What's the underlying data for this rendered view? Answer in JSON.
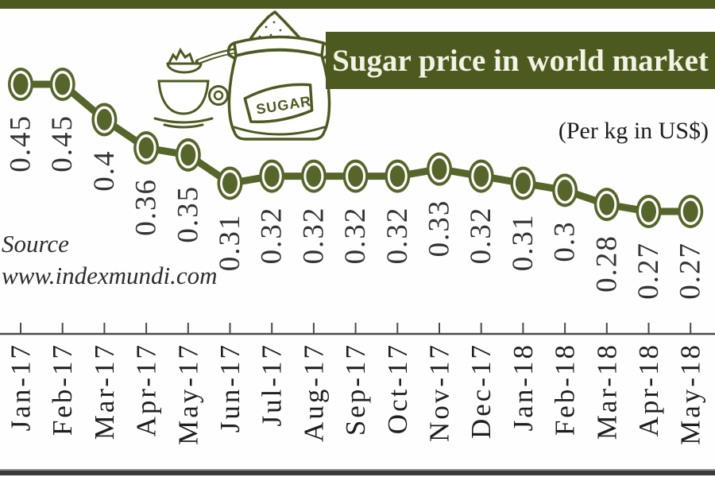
{
  "header": {
    "title": "Sugar price in world market",
    "unit_note": "(Per kg in US$)"
  },
  "source": {
    "label": "Source",
    "url": "www.indexmundi.com"
  },
  "illustration": {
    "sack_label": "SUGAR",
    "icons": [
      "sugar-sack-icon",
      "spoon-icon",
      "teacup-icon"
    ]
  },
  "colors": {
    "olive_dark": "#4c5a20",
    "olive": "#56652a",
    "banner_text": "#f2f3e2",
    "label_ink": "#333333",
    "month_ink": "#1f1f1f",
    "axis_ink": "#4a4a4a",
    "rule_ink": "#3a3a3a"
  },
  "chart_data": {
    "type": "line",
    "title": "Sugar price in world market",
    "subtitle": "(Per kg in US$)",
    "series_name": "Sugar price (US$ per kg)",
    "categories": [
      "Jan-17",
      "Feb-17",
      "Mar-17",
      "Apr-17",
      "May-17",
      "Jun-17",
      "Jul-17",
      "Aug-17",
      "Sep-17",
      "Oct-17",
      "Nov-17",
      "Dec-17",
      "Jan-18",
      "Feb-18",
      "Mar-18",
      "Apr-18",
      "May-18"
    ],
    "values": [
      0.45,
      0.45,
      0.4,
      0.36,
      0.35,
      0.31,
      0.32,
      0.32,
      0.32,
      0.32,
      0.33,
      0.32,
      0.31,
      0.3,
      0.28,
      0.27,
      0.27
    ],
    "point_labels": [
      "0.45",
      "0.45",
      "0.4",
      "0.36",
      "0.35",
      "0.31",
      "0.32",
      "0.32",
      "0.32",
      "0.32",
      "0.33",
      "0.32",
      "0.31",
      "0.3",
      "0.28",
      "0.27",
      "0.27"
    ],
    "xlabel": "",
    "ylabel": "",
    "ylim": [
      0.25,
      0.47
    ],
    "grid": false,
    "legend_position": "none",
    "marker": "ringed-circle",
    "label_rotation_deg": -90,
    "source": "www.indexmundi.com"
  }
}
